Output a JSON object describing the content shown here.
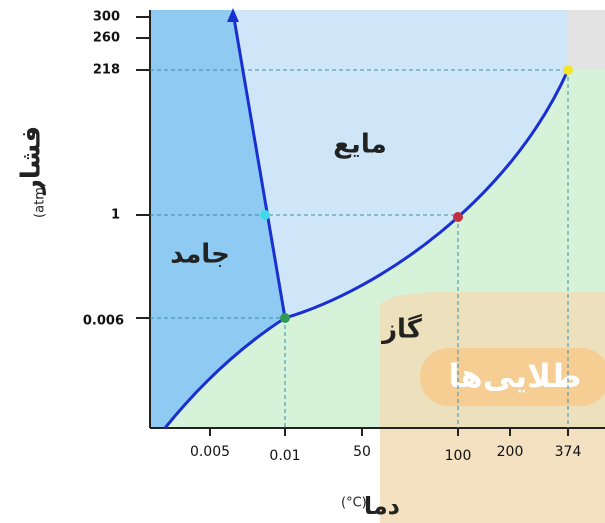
{
  "y_axis": {
    "title": "فشار",
    "unit": "(atm)",
    "ticks": [
      "300",
      "260",
      "218",
      "1",
      "0.006"
    ]
  },
  "x_axis": {
    "title": "دما",
    "unit": "(°C)",
    "ticks": [
      "0.005",
      "0.01",
      "50",
      "100",
      "200",
      "374"
    ]
  },
  "regions": {
    "solid": "جامد",
    "liquid": "مایع",
    "gas": "گاز"
  },
  "watermark": "طلایی‌ها"
}
